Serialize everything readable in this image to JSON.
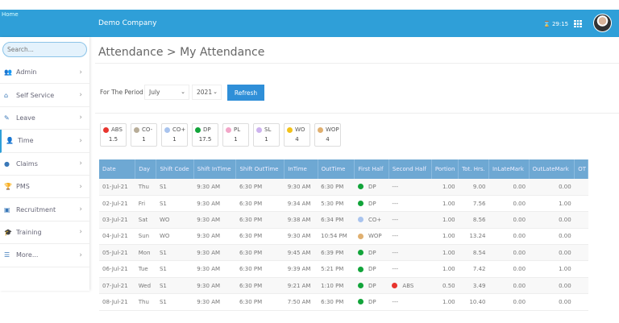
{
  "header": {
    "logo_alt": "Home",
    "company": "Demo Company",
    "timer": "29:15"
  },
  "sidebar": {
    "search_placeholder": "Search...",
    "items": [
      {
        "label": "Admin",
        "icon": "users-icon",
        "glyph": "👥"
      },
      {
        "label": "Self Service",
        "icon": "home-icon",
        "glyph": "⌂"
      },
      {
        "label": "Leave",
        "icon": "edit-icon",
        "glyph": "✎"
      },
      {
        "label": "Time",
        "icon": "user-clock-icon",
        "glyph": "👤",
        "active": true
      },
      {
        "label": "Claims",
        "icon": "coin-icon",
        "glyph": "●"
      },
      {
        "label": "PMS",
        "icon": "trophy-icon",
        "glyph": "🏆"
      },
      {
        "label": "Recruitment",
        "icon": "recruit-icon",
        "glyph": "▣"
      },
      {
        "label": "Training",
        "icon": "graduation-cap-icon",
        "glyph": "🎓"
      },
      {
        "label": "More...",
        "icon": "list-icon",
        "glyph": "☰"
      }
    ]
  },
  "page": {
    "title": "Attendance > My Attendance",
    "period_label": "For The Period",
    "month": "July",
    "year": "2021",
    "refresh_label": "Refresh"
  },
  "legend": [
    {
      "code": "ABS",
      "count": "1.5",
      "color": "#e8352e"
    },
    {
      "code": "CO-",
      "count": "1",
      "color": "#b8ad98"
    },
    {
      "code": "CO+",
      "count": "1",
      "color": "#a9c4ee"
    },
    {
      "code": "DP",
      "count": "17.5",
      "color": "#12a43a"
    },
    {
      "code": "PL",
      "count": "1",
      "color": "#f2a6c8"
    },
    {
      "code": "SL",
      "count": "1",
      "color": "#cdb3ee"
    },
    {
      "code": "WO",
      "count": "4",
      "color": "#f2c21a"
    },
    {
      "code": "WOP",
      "count": "4",
      "color": "#e0b070"
    }
  ],
  "table": {
    "columns": [
      "Date",
      "Day",
      "Shift Code",
      "Shift InTime",
      "Shift OutTime",
      "InTime",
      "OutTime",
      "First Half",
      "Second Half",
      "Portion",
      "Tot. Hrs.",
      "InLateMark",
      "OutLateMark",
      "OT"
    ],
    "rows": [
      [
        "01-Jul-21",
        "Thu",
        "S1",
        "9:30 AM",
        "6:30 PM",
        "9:30 AM",
        "6:30 PM",
        "DP",
        "---",
        "1.00",
        "9.00",
        "0.00",
        "0.00",
        ""
      ],
      [
        "02-Jul-21",
        "Fri",
        "S1",
        "9:30 AM",
        "6:30 PM",
        "9:34 AM",
        "5:30 PM",
        "DP",
        "---",
        "1.00",
        "7.56",
        "0.00",
        "1.00",
        ""
      ],
      [
        "03-Jul-21",
        "Sat",
        "WO",
        "9:30 AM",
        "6:30 PM",
        "9:38 AM",
        "6:34 PM",
        "CO+",
        "---",
        "1.00",
        "8.56",
        "0.00",
        "0.00",
        ""
      ],
      [
        "04-Jul-21",
        "Sun",
        "WO",
        "9:30 AM",
        "6:30 PM",
        "9:30 AM",
        "10:54 PM",
        "WOP",
        "---",
        "1.00",
        "13.24",
        "0.00",
        "0.00",
        ""
      ],
      [
        "05-Jul-21",
        "Mon",
        "S1",
        "9:30 AM",
        "6:30 PM",
        "9:45 AM",
        "6:39 PM",
        "DP",
        "---",
        "1.00",
        "8.54",
        "0.00",
        "0.00",
        ""
      ],
      [
        "06-Jul-21",
        "Tue",
        "S1",
        "9:30 AM",
        "6:30 PM",
        "9:39 AM",
        "5:21 PM",
        "DP",
        "---",
        "1.00",
        "7.42",
        "0.00",
        "1.00",
        ""
      ],
      [
        "07-Jul-21",
        "Wed",
        "S1",
        "9:30 AM",
        "6:30 PM",
        "9:21 AM",
        "1:10 PM",
        "DP",
        "ABS",
        "0.50",
        "3.49",
        "0.00",
        "0.00",
        ""
      ],
      [
        "08-Jul-21",
        "Thu",
        "S1",
        "9:30 AM",
        "6:30 PM",
        "7:50 AM",
        "6:30 PM",
        "DP",
        "---",
        "1.00",
        "10.40",
        "0.00",
        "0.00",
        ""
      ]
    ]
  }
}
